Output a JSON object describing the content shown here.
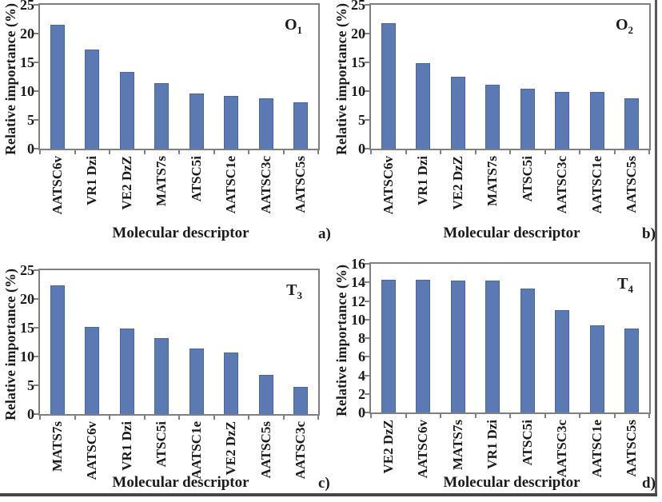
{
  "figure": {
    "background_color": "#ffffff",
    "frame_color": "#7f7f7f",
    "border_color": "#4f4f4f"
  },
  "chart_data": [
    {
      "panel": "a",
      "letter": "a)",
      "type": "bar",
      "title_base": "O",
      "title_sub": "1",
      "ylabel": "Relative importance (%)",
      "xlabel": "Molecular descriptor",
      "categories": [
        "AATSC6v",
        "VR1 Dzi",
        "VE2 DzZ",
        "MATS7s",
        "ATSC5i",
        "AATSC1e",
        "AATSC3c",
        "AATSC5s"
      ],
      "values": [
        21.5,
        17.2,
        13.4,
        11.4,
        9.6,
        9.2,
        8.7,
        8.0
      ],
      "ylim": [
        0,
        25
      ],
      "ytick_step": 5,
      "grid": false,
      "bar_color": "#5b7ab4",
      "bar_edge_color": "#47659f"
    },
    {
      "panel": "b",
      "letter": "b)",
      "type": "bar",
      "title_base": "O",
      "title_sub": "2",
      "ylabel": "Relative importance (%)",
      "xlabel": "Molecular descriptor",
      "categories": [
        "AATSC6v",
        "VR1 Dzi",
        "VE2 DzZ",
        "MATS7s",
        "ATSC5i",
        "AATSC3c",
        "AATSC1e",
        "AATSC5s"
      ],
      "values": [
        21.8,
        14.9,
        12.5,
        11.1,
        10.4,
        9.9,
        9.8,
        8.7
      ],
      "ylim": [
        0,
        25
      ],
      "ytick_step": 5,
      "grid": false,
      "bar_color": "#5b7ab4",
      "bar_edge_color": "#47659f"
    },
    {
      "panel": "c",
      "letter": "c)",
      "type": "bar",
      "title_base": "T",
      "title_sub": "3",
      "ylabel": "Relative importance (%)",
      "xlabel": "Molecular descriptor",
      "categories": [
        "MATS7s",
        "AATSC6v",
        "VR1 Dzi",
        "ATSC5i",
        "AATSC1e",
        "VE2 DzZ",
        "AATSC5s",
        "AATSC3c"
      ],
      "values": [
        22.3,
        15.2,
        14.8,
        13.2,
        11.4,
        10.7,
        6.8,
        4.7
      ],
      "ylim": [
        0,
        25
      ],
      "ytick_step": 5,
      "grid": false,
      "bar_color": "#5b7ab4",
      "bar_edge_color": "#47659f"
    },
    {
      "panel": "d",
      "letter": "d)",
      "type": "bar",
      "title_base": "T",
      "title_sub": "4",
      "ylabel": "Relative importance (%)",
      "xlabel": "Molecular descriptor",
      "categories": [
        "VE2 DzZ",
        "AATSC6v",
        "MATS7s",
        "VR1 Dzi",
        "ATSC5i",
        "AATSC3c",
        "AATSC1e",
        "AATSC5s"
      ],
      "values": [
        14.3,
        14.3,
        14.2,
        14.2,
        13.3,
        11.0,
        9.4,
        9.0
      ],
      "ylim": [
        0,
        16
      ],
      "ytick_step": 2,
      "grid": false,
      "bar_color": "#5b7ab4",
      "bar_edge_color": "#47659f"
    }
  ]
}
